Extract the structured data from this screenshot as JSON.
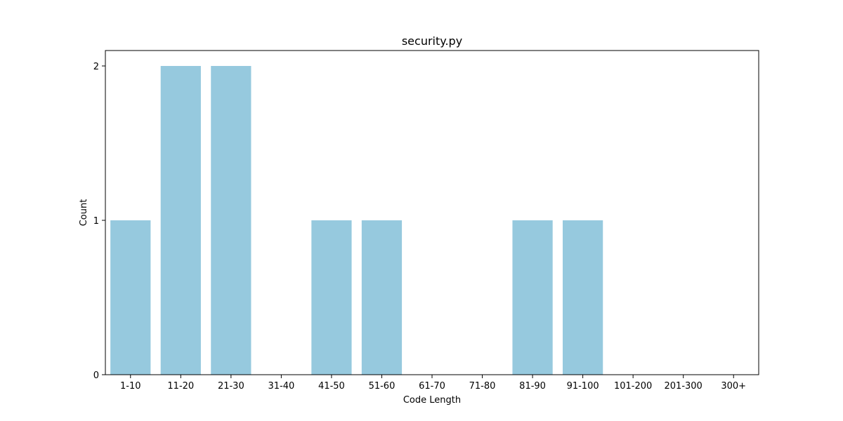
{
  "chart_data": {
    "type": "bar",
    "title": "security.py",
    "xlabel": "Code Length",
    "ylabel": "Count",
    "categories": [
      "1-10",
      "11-20",
      "21-30",
      "31-40",
      "41-50",
      "51-60",
      "61-70",
      "71-80",
      "81-90",
      "91-100",
      "101-200",
      "201-300",
      "300+"
    ],
    "values": [
      1,
      2,
      2,
      0,
      1,
      1,
      0,
      0,
      1,
      1,
      0,
      0,
      0
    ],
    "ylim": [
      0,
      2.1
    ],
    "yticks": [
      0,
      1,
      2
    ],
    "grid": false,
    "bar_color": "#96c9de"
  }
}
